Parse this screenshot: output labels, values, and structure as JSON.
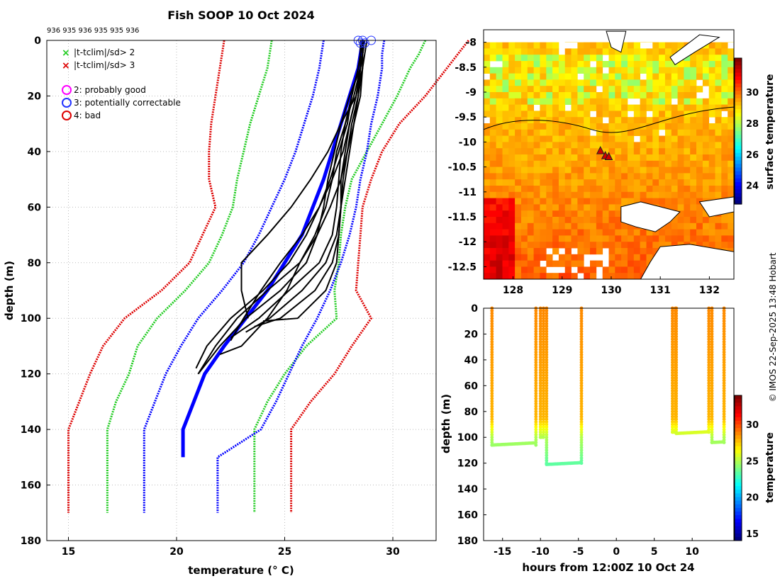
{
  "title": "Fish SOOP 10 Oct 2024",
  "credit": "© IMOS 22-Sep-2025 13:48 Hobart",
  "chart_data": [
    {
      "type": "line",
      "name": "temperature-depth-profiles",
      "xlabel": "temperature (° C)",
      "ylabel": "depth (m)",
      "xlim": [
        14,
        32
      ],
      "ylim": [
        0,
        180
      ],
      "y_reversed": true,
      "x_ticks": [
        15,
        20,
        25,
        30
      ],
      "y_ticks": [
        0,
        20,
        40,
        60,
        80,
        100,
        120,
        140,
        160,
        180
      ],
      "top_labels": "936 935 936 935 935 936",
      "legend": {
        "cross_green": "|t-tclim|/sd> 2",
        "cross_red": "|t-tclim|/sd> 3",
        "circle_magenta": "2: probably good",
        "circle_blue": "3: potentially correctable",
        "circle_red": "4: bad"
      },
      "colors": {
        "clim_mean": "#0000ff",
        "sd2": "#22cc22",
        "sd3": "#dd0000",
        "profile": "#000000",
        "qc_circle": "#2233ff"
      },
      "depth_levels": [
        0,
        5,
        10,
        20,
        30,
        40,
        50,
        60,
        70,
        80,
        90,
        100,
        110,
        120,
        130,
        140,
        150,
        170
      ],
      "clim_mean": [
        28.6,
        28.5,
        28.4,
        28.0,
        27.6,
        27.2,
        26.8,
        26.3,
        25.8,
        25.0,
        24.2,
        23.2,
        22.2,
        21.3,
        20.8,
        20.3,
        20.3,
        20.3
      ],
      "clim_mean_end_depth": 150,
      "lower_1sd": [
        26.8,
        26.7,
        26.6,
        26.3,
        25.9,
        25.5,
        25.0,
        24.4,
        23.8,
        23.1,
        22.1,
        21.0,
        20.2,
        19.5,
        19.0,
        18.5,
        18.5,
        18.5
      ],
      "upper_1sd": [
        29.6,
        29.5,
        29.5,
        29.3,
        29.0,
        28.8,
        28.5,
        28.3,
        28.0,
        27.6,
        27.1,
        26.5,
        25.8,
        25.2,
        24.6,
        23.9,
        21.9,
        21.9
      ],
      "lower_2sd": [
        24.4,
        24.3,
        24.2,
        23.8,
        23.4,
        23.1,
        22.8,
        22.6,
        22.1,
        21.5,
        20.4,
        19.1,
        18.2,
        17.8,
        17.2,
        16.8,
        16.8,
        16.8
      ],
      "upper_2sd": [
        31.5,
        31.2,
        30.8,
        30.2,
        29.5,
        28.8,
        28.1,
        27.8,
        27.6,
        27.5,
        27.3,
        27.4,
        26.0,
        25.0,
        24.2,
        23.6,
        23.6,
        23.6
      ],
      "lower_3sd": [
        22.2,
        22.1,
        22.0,
        21.8,
        21.6,
        21.5,
        21.5,
        21.8,
        21.2,
        20.6,
        19.3,
        17.6,
        16.6,
        16.0,
        15.5,
        15.0,
        15.0,
        15.0
      ],
      "upper_3sd": [
        33.5,
        33.0,
        32.5,
        31.5,
        30.3,
        29.5,
        29.0,
        28.6,
        28.5,
        28.4,
        28.3,
        29.0,
        28.1,
        27.3,
        26.2,
        25.3,
        25.3,
        25.3
      ],
      "profile_depth_levels": [
        0,
        5,
        10,
        20,
        30,
        40,
        50,
        60,
        70,
        80,
        90,
        100,
        110,
        120
      ],
      "profiles": [
        {
          "name": "drop-1",
          "temps": [
            28.6,
            28.6,
            28.6,
            28.5,
            28.2,
            28.0,
            27.8,
            27.6,
            27.5,
            27.4,
            26.9,
            25.6,
            24.0,
            23.0
          ],
          "end_depth": 101
        },
        {
          "name": "drop-2",
          "temps": [
            28.7,
            28.6,
            28.6,
            28.4,
            28.2,
            27.9,
            27.7,
            27.6,
            27.5,
            27.2,
            26.4,
            24.8,
            23.6,
            22.8
          ],
          "end_depth": 103
        },
        {
          "name": "drop-3",
          "temps": [
            28.6,
            28.5,
            28.5,
            28.3,
            28.0,
            27.8,
            27.6,
            27.6,
            27.4,
            26.9,
            25.8,
            24.3,
            23.2,
            22.5
          ],
          "end_depth": 105
        },
        {
          "name": "drop-4",
          "temps": [
            28.5,
            28.5,
            28.4,
            28.1,
            27.8,
            27.6,
            27.5,
            27.4,
            27.2,
            26.6,
            25.2,
            23.8,
            22.5,
            21.5
          ],
          "end_depth": 107
        },
        {
          "name": "drop-5",
          "temps": [
            28.6,
            28.6,
            28.5,
            28.0,
            27.6,
            27.3,
            27.0,
            26.8,
            26.5,
            26.0,
            24.8,
            23.2,
            22.0,
            21.0
          ],
          "end_depth": 120
        },
        {
          "name": "drop-6",
          "temps": [
            28.7,
            28.6,
            28.5,
            28.2,
            27.8,
            27.4,
            27.2,
            26.9,
            26.4,
            25.7,
            24.2,
            22.8,
            21.8,
            21.0
          ],
          "end_depth": 121
        },
        {
          "name": "drop-7",
          "temps": [
            28.6,
            28.5,
            28.4,
            28.1,
            27.9,
            27.5,
            27.1,
            26.6,
            26.0,
            25.2,
            24.0,
            22.5,
            21.4,
            20.9
          ],
          "end_depth": 118
        },
        {
          "name": "drop-8",
          "temps": [
            28.8,
            28.7,
            28.6,
            28.3,
            27.6,
            27.0,
            26.2,
            25.3,
            24.2,
            23.0,
            23.0,
            23.3,
            23.5,
            23.5
          ],
          "end_depth": 100
        },
        {
          "name": "drop-9",
          "temps": [
            28.7,
            28.6,
            28.5,
            28.4,
            28.1,
            27.9,
            27.6,
            27.1,
            26.5,
            25.7,
            25.1,
            24.2,
            23.0,
            22.0
          ],
          "end_depth": 113
        },
        {
          "name": "drop-10",
          "temps": [
            28.6,
            28.5,
            28.5,
            28.3,
            28.0,
            27.7,
            27.2,
            26.6,
            25.8,
            24.8,
            23.9,
            23.1,
            22.5,
            22.0
          ],
          "end_depth": 108
        }
      ],
      "qc_circles": [
        {
          "temp": 28.4,
          "depth": 0
        },
        {
          "temp": 28.6,
          "depth": 0
        },
        {
          "temp": 28.7,
          "depth": 1
        },
        {
          "temp": 29.0,
          "depth": 0
        },
        {
          "temp": 28.5,
          "depth": 1
        }
      ]
    },
    {
      "type": "heatmap",
      "name": "surface-temperature-map",
      "x_ticks": [
        128,
        129,
        130,
        131,
        132
      ],
      "y_ticks": [
        -8,
        -8.5,
        -9,
        -9.5,
        -10,
        -10.5,
        -11,
        -11.5,
        -12,
        -12.5
      ],
      "xlim": [
        127.4,
        132.5
      ],
      "ylim": [
        -12.75,
        -7.75
      ],
      "colorbar_label": "surface temperature",
      "colorbar_ticks": [
        24,
        26,
        28,
        30
      ],
      "colorbar_range": [
        22.8,
        32.2
      ],
      "drop_positions": [
        {
          "lon": 129.78,
          "lat": -10.18
        },
        {
          "lon": 129.88,
          "lat": -10.28
        },
        {
          "lon": 129.95,
          "lat": -10.3
        }
      ]
    },
    {
      "type": "scatter",
      "name": "time-depth-section",
      "xlabel": "hours from 12:00Z 10 Oct 24",
      "ylabel": "depth (m)",
      "xlim": [
        -17.5,
        15.5
      ],
      "ylim": [
        0,
        180
      ],
      "y_reversed": true,
      "x_ticks": [
        -15,
        -10,
        -5,
        0,
        5,
        10
      ],
      "y_ticks": [
        0,
        20,
        40,
        60,
        80,
        100,
        120,
        140,
        160,
        180
      ],
      "colorbar_label": "temperature",
      "colorbar_ticks": [
        15,
        20,
        25,
        30
      ],
      "colorbar_range": [
        14,
        34
      ],
      "drops": [
        {
          "hours_start": -16.4,
          "hours_end": -10.6,
          "max_depth": 106
        },
        {
          "hours_start": -10.0,
          "hours_end": -9.6,
          "max_depth": 100
        },
        {
          "hours_start": -9.2,
          "hours_end": -4.6,
          "max_depth": 121
        },
        {
          "hours_start": 7.4,
          "hours_end": 7.8,
          "max_depth": 96
        },
        {
          "hours_start": 7.9,
          "hours_end": 12.2,
          "max_depth": 97
        },
        {
          "hours_start": 12.6,
          "hours_end": 14.2,
          "max_depth": 104
        }
      ]
    }
  ]
}
